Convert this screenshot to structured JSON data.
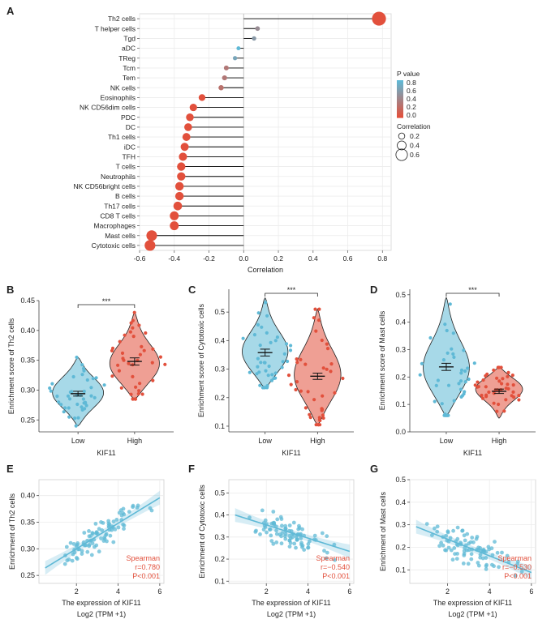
{
  "panels": {
    "A": {
      "label": "A"
    },
    "B": {
      "label": "B"
    },
    "C": {
      "label": "C"
    },
    "D": {
      "label": "D"
    },
    "E": {
      "label": "E"
    },
    "F": {
      "label": "F"
    },
    "G": {
      "label": "G"
    }
  },
  "colors": {
    "blue": "#5fb9d6",
    "red": "#e2503c",
    "grid": "#ececec"
  },
  "chart_data": [
    {
      "id": "A",
      "type": "lollipop",
      "xlabel": "Correlation",
      "xlim": [
        -0.6,
        0.85
      ],
      "xticks": [
        -0.6,
        -0.4,
        -0.2,
        0.0,
        0.2,
        0.4,
        0.6,
        0.8
      ],
      "xtick_labels": [
        "-0.6",
        "-0.4",
        "-0.2",
        "0.0",
        "0.2",
        "0.4",
        "0.6",
        "0.8"
      ],
      "categories": [
        "Th2 cells",
        "T helper cells",
        "Tgd",
        "aDC",
        "TReg",
        "Tcm",
        "Tem",
        "NK cells",
        "Eosinophils",
        "NK CD56dim cells",
        "PDC",
        "DC",
        "Th1 cells",
        "iDC",
        "TFH",
        "T cells",
        "Neutrophils",
        "NK CD56bright cells",
        "B cells",
        "Th17 cells",
        "CD8 T cells",
        "Macrophages",
        "Mast cells",
        "Cytotoxic cells"
      ],
      "values": [
        0.78,
        0.08,
        0.06,
        -0.03,
        -0.05,
        -0.1,
        -0.11,
        -0.13,
        -0.24,
        -0.29,
        -0.31,
        -0.32,
        -0.33,
        -0.34,
        -0.35,
        -0.36,
        -0.36,
        -0.37,
        -0.37,
        -0.38,
        -0.4,
        -0.4,
        -0.53,
        -0.54
      ],
      "pvalues": [
        0.0,
        0.45,
        0.55,
        0.8,
        0.65,
        0.3,
        0.3,
        0.25,
        0.0,
        0.0,
        0.0,
        0.0,
        0.0,
        0.0,
        0.0,
        0.0,
        0.0,
        0.0,
        0.0,
        0.0,
        0.0,
        0.0,
        0.0,
        0.0
      ],
      "legend": {
        "pvalue_title": "P value",
        "pvalue_ticks": [
          "0.8",
          "0.6",
          "0.4",
          "0.2",
          "0.0"
        ],
        "corr_title": "Correlation",
        "corr_sizes": [
          "0.2",
          "0.4",
          "0.6"
        ]
      }
    },
    {
      "id": "B",
      "type": "violin",
      "ylabel": "Enrichment score of Th2 cells",
      "xlabel": "KIF11",
      "categories": [
        "Low",
        "High"
      ],
      "ylim": [
        0.23,
        0.45
      ],
      "yticks": [
        0.25,
        0.3,
        0.35,
        0.4,
        0.45
      ],
      "ytick_labels": [
        "0.25",
        "0.30",
        "0.35",
        "0.40",
        "0.45"
      ],
      "means": [
        0.294,
        0.348
      ],
      "sems": [
        0.004,
        0.006
      ],
      "ranges": [
        [
          0.24,
          0.355
        ],
        [
          0.285,
          0.43
        ]
      ],
      "modes": [
        0.295,
        0.34
      ],
      "significance": "***"
    },
    {
      "id": "C",
      "type": "violin",
      "ylabel": "Enrichment score of Cytotoxic cells",
      "xlabel": "KIF11",
      "categories": [
        "Low",
        "High"
      ],
      "ylim": [
        0.08,
        0.58
      ],
      "yticks": [
        0.1,
        0.2,
        0.3,
        0.4,
        0.5
      ],
      "ytick_labels": [
        "0.1",
        "0.2",
        "0.3",
        "0.4",
        "0.5"
      ],
      "means": [
        0.358,
        0.275
      ],
      "sems": [
        0.012,
        0.011
      ],
      "ranges": [
        [
          0.235,
          0.55
        ],
        [
          0.105,
          0.51
        ]
      ],
      "modes": [
        0.35,
        0.27
      ],
      "significance": "***"
    },
    {
      "id": "D",
      "type": "violin",
      "ylabel": "Enrichment score of Mast cells",
      "xlabel": "KIF11",
      "categories": [
        "Low",
        "High"
      ],
      "ylim": [
        0.0,
        0.52
      ],
      "yticks": [
        0.0,
        0.1,
        0.2,
        0.3,
        0.4,
        0.5
      ],
      "ytick_labels": [
        "0.0",
        "0.1",
        "0.2",
        "0.3",
        "0.4",
        "0.5"
      ],
      "means": [
        0.237,
        0.148
      ],
      "sems": [
        0.013,
        0.008
      ],
      "ranges": [
        [
          0.06,
          0.49
        ],
        [
          0.05,
          0.235
        ]
      ],
      "modes": [
        0.22,
        0.16
      ],
      "significance": "***"
    },
    {
      "id": "E",
      "type": "scatter",
      "ylabel": "Enrichment of Th2 cells",
      "xlabel": "The expression of KIF11",
      "xlabel2": "Log2 (TPM +1)",
      "xlim": [
        0.2,
        6.2
      ],
      "ylim": [
        0.235,
        0.43
      ],
      "xticks": [
        2,
        4,
        6
      ],
      "xtick_labels": [
        "2",
        "4",
        "6"
      ],
      "yticks": [
        0.25,
        0.3,
        0.35,
        0.4
      ],
      "ytick_labels": [
        "0.25",
        "0.30",
        "0.35",
        "0.40"
      ],
      "fit": {
        "intercept": 0.252,
        "slope": 0.024
      },
      "noise": 0.022,
      "stats": [
        "Spearman",
        "r=0.780",
        "P<0.001"
      ]
    },
    {
      "id": "F",
      "type": "scatter",
      "ylabel": "Enrichment of Cytotoxic cells",
      "xlabel": "The expression of KIF11",
      "xlabel2": "Log2 (TPM +1)",
      "xlim": [
        0.2,
        6.2
      ],
      "ylim": [
        0.09,
        0.56
      ],
      "xticks": [
        2,
        4,
        6
      ],
      "xtick_labels": [
        "2",
        "4",
        "6"
      ],
      "yticks": [
        0.1,
        0.2,
        0.3,
        0.4,
        0.5
      ],
      "ytick_labels": [
        "0.1",
        "0.2",
        "0.3",
        "0.4",
        "0.5"
      ],
      "fit": {
        "intercept": 0.415,
        "slope": -0.03
      },
      "noise": 0.06,
      "stats": [
        "Spearman",
        "r=−0.540",
        "P<0.001"
      ]
    },
    {
      "id": "G",
      "type": "scatter",
      "ylabel": "Enrichment of Mast cells",
      "xlabel": "The expression of KIF11",
      "xlabel2": "Log2 (TPM +1)",
      "xlim": [
        0.2,
        6.2
      ],
      "ylim": [
        0.04,
        0.5
      ],
      "xticks": [
        2,
        4,
        6
      ],
      "xtick_labels": [
        "2",
        "4",
        "6"
      ],
      "yticks": [
        0.1,
        0.2,
        0.3,
        0.4,
        0.5
      ],
      "ytick_labels": [
        "0.1",
        "0.2",
        "0.3",
        "0.4",
        "0.5"
      ],
      "fit": {
        "intercept": 0.31,
        "slope": -0.037
      },
      "noise": 0.06,
      "stats": [
        "Spearman",
        "r=−0.530",
        "P<0.001"
      ]
    }
  ]
}
